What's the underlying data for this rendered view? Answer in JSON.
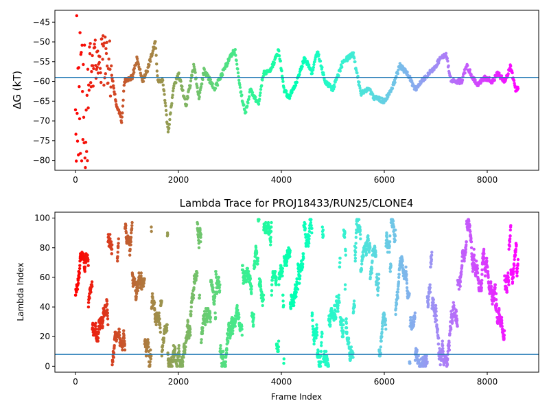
{
  "chart_data": [
    {
      "type": "scatter",
      "title": "",
      "xlabel": "",
      "ylabel": "ΔG (kT)",
      "xlim": [
        -400,
        9000
      ],
      "ylim": [
        -82.5,
        -42
      ],
      "xticks": [
        0,
        2000,
        4000,
        6000,
        8000
      ],
      "xtick_labels": [
        "0",
        "2000",
        "4000",
        "6000",
        "8000"
      ],
      "yticks": [
        -45,
        -50,
        -55,
        -60,
        -65,
        -70,
        -75,
        -80
      ],
      "ytick_labels": [
        "−45",
        "−50",
        "−55",
        "−60",
        "−65",
        "−70",
        "−75",
        "−80"
      ],
      "hline": -59,
      "hline_color": "#1f77b4",
      "colormap": "rainbow (red at frame 0 → violet at last frame)",
      "grid": false,
      "frames_total": 8600,
      "trace_keypoints": [
        {
          "x": 0,
          "y": -58
        },
        {
          "x": 300,
          "y": -55
        },
        {
          "x": 600,
          "y": -54
        },
        {
          "x": 700,
          "y": -58
        },
        {
          "x": 800,
          "y": -66
        },
        {
          "x": 900,
          "y": -70
        },
        {
          "x": 950,
          "y": -60
        },
        {
          "x": 1100,
          "y": -59
        },
        {
          "x": 1200,
          "y": -54
        },
        {
          "x": 1300,
          "y": -60
        },
        {
          "x": 1400,
          "y": -57
        },
        {
          "x": 1550,
          "y": -50
        },
        {
          "x": 1600,
          "y": -60
        },
        {
          "x": 1700,
          "y": -60
        },
        {
          "x": 1800,
          "y": -73
        },
        {
          "x": 1900,
          "y": -62
        },
        {
          "x": 2000,
          "y": -58
        },
        {
          "x": 2150,
          "y": -66
        },
        {
          "x": 2300,
          "y": -56
        },
        {
          "x": 2400,
          "y": -64
        },
        {
          "x": 2500,
          "y": -57
        },
        {
          "x": 2700,
          "y": -62
        },
        {
          "x": 2850,
          "y": -58
        },
        {
          "x": 3000,
          "y": -54
        },
        {
          "x": 3100,
          "y": -52
        },
        {
          "x": 3200,
          "y": -62
        },
        {
          "x": 3300,
          "y": -68
        },
        {
          "x": 3400,
          "y": -62
        },
        {
          "x": 3550,
          "y": -66
        },
        {
          "x": 3650,
          "y": -58
        },
        {
          "x": 3800,
          "y": -57
        },
        {
          "x": 3950,
          "y": -52
        },
        {
          "x": 4050,
          "y": -62
        },
        {
          "x": 4150,
          "y": -64
        },
        {
          "x": 4300,
          "y": -60
        },
        {
          "x": 4450,
          "y": -54
        },
        {
          "x": 4600,
          "y": -58
        },
        {
          "x": 4700,
          "y": -52
        },
        {
          "x": 4850,
          "y": -60
        },
        {
          "x": 5000,
          "y": -62
        },
        {
          "x": 5200,
          "y": -55
        },
        {
          "x": 5400,
          "y": -53
        },
        {
          "x": 5450,
          "y": -57
        },
        {
          "x": 5550,
          "y": -63
        },
        {
          "x": 5700,
          "y": -62
        },
        {
          "x": 5800,
          "y": -64
        },
        {
          "x": 6000,
          "y": -65
        },
        {
          "x": 6100,
          "y": -63
        },
        {
          "x": 6200,
          "y": -60
        },
        {
          "x": 6300,
          "y": -56
        },
        {
          "x": 6450,
          "y": -58
        },
        {
          "x": 6600,
          "y": -62
        },
        {
          "x": 6800,
          "y": -59
        },
        {
          "x": 7000,
          "y": -56
        },
        {
          "x": 7100,
          "y": -54
        },
        {
          "x": 7200,
          "y": -53
        },
        {
          "x": 7300,
          "y": -60
        },
        {
          "x": 7500,
          "y": -60
        },
        {
          "x": 7600,
          "y": -56
        },
        {
          "x": 7800,
          "y": -61
        },
        {
          "x": 7950,
          "y": -59
        },
        {
          "x": 8100,
          "y": -60
        },
        {
          "x": 8200,
          "y": -58
        },
        {
          "x": 8350,
          "y": -60
        },
        {
          "x": 8450,
          "y": -56
        },
        {
          "x": 8550,
          "y": -62
        }
      ],
      "early_scatter_x_range": [
        0,
        250
      ],
      "early_scatter_y_range": [
        -82,
        -43
      ]
    },
    {
      "type": "scatter",
      "title": "Lambda Trace for PROJ18433/RUN25/CLONE4",
      "xlabel": "Frame Index",
      "ylabel": "Lambda Index",
      "xlim": [
        -400,
        9000
      ],
      "ylim": [
        -4,
        104
      ],
      "xticks": [
        0,
        2000,
        4000,
        6000,
        8000
      ],
      "xtick_labels": [
        "0",
        "2000",
        "4000",
        "6000",
        "8000"
      ],
      "yticks": [
        0,
        20,
        40,
        60,
        80,
        100
      ],
      "ytick_labels": [
        "0",
        "20",
        "40",
        "60",
        "80",
        "100"
      ],
      "hline": 8,
      "hline_color": "#1f77b4",
      "colormap": "rainbow (red at frame 0 → violet at last frame)",
      "grid": false,
      "frames_total": 8600,
      "lambda_range": [
        0,
        99
      ]
    }
  ]
}
